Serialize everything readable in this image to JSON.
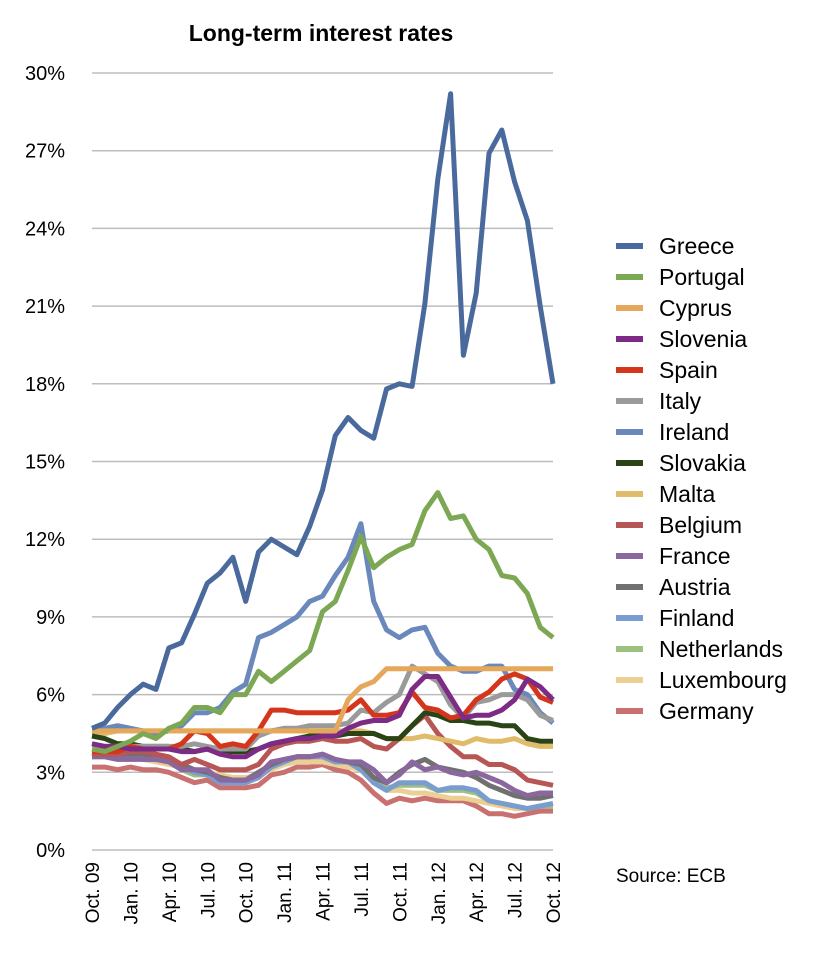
{
  "chart_data": {
    "type": "line",
    "title": "Long-term interest rates",
    "source": "Source: ECB",
    "y_ticks": [
      "0%",
      "3%",
      "6%",
      "9%",
      "12%",
      "15%",
      "18%",
      "21%",
      "24%",
      "27%",
      "30%"
    ],
    "ylim": [
      0,
      30
    ],
    "y_unit": "%",
    "grid": true,
    "legend_position": "right",
    "x_tick_labels": [
      "Oct. 09",
      "Jan. 10",
      "Apr. 10",
      "Jul. 10",
      "Oct. 10",
      "Jan. 11",
      "Apr. 11",
      "Jul. 11",
      "Oct. 11",
      "Jan. 12",
      "Apr. 12",
      "Jul. 12",
      "Oct. 12"
    ],
    "x_tick_index": [
      0,
      3,
      6,
      9,
      12,
      15,
      18,
      21,
      24,
      27,
      30,
      33,
      36
    ],
    "x": [
      "Oct. 09",
      "Nov. 09",
      "Dec. 09",
      "Jan. 10",
      "Feb. 10",
      "Mar. 10",
      "Apr. 10",
      "May 10",
      "Jun. 10",
      "Jul. 10",
      "Aug. 10",
      "Sep. 10",
      "Oct. 10",
      "Nov. 10",
      "Dec. 10",
      "Jan. 11",
      "Feb. 11",
      "Mar. 11",
      "Apr. 11",
      "May 11",
      "Jun. 11",
      "Jul. 11",
      "Aug. 11",
      "Sep. 11",
      "Oct. 11",
      "Nov. 11",
      "Dec. 11",
      "Jan. 12",
      "Feb. 12",
      "Mar. 12",
      "Apr. 12",
      "May 12",
      "Jun. 12",
      "Jul. 12",
      "Aug. 12",
      "Sep. 12",
      "Oct. 12"
    ],
    "series": [
      {
        "name": "Germany",
        "color": "#c97070",
        "values": [
          3.2,
          3.2,
          3.1,
          3.2,
          3.1,
          3.1,
          3.0,
          2.8,
          2.6,
          2.7,
          2.4,
          2.4,
          2.4,
          2.5,
          2.9,
          3.0,
          3.2,
          3.2,
          3.3,
          3.1,
          3.0,
          2.7,
          2.2,
          1.8,
          2.0,
          1.9,
          2.0,
          1.9,
          1.9,
          1.9,
          1.7,
          1.4,
          1.4,
          1.3,
          1.4,
          1.5,
          1.5
        ]
      },
      {
        "name": "Luxembourg",
        "color": "#ecd093",
        "values": [
          3.6,
          3.6,
          3.5,
          3.5,
          3.5,
          3.4,
          3.3,
          3.2,
          3.1,
          3.0,
          2.9,
          2.8,
          2.8,
          2.9,
          3.1,
          3.3,
          3.4,
          3.4,
          3.4,
          3.3,
          3.2,
          3.1,
          2.6,
          2.3,
          2.3,
          2.2,
          2.2,
          2.1,
          2.0,
          2.0,
          1.9,
          1.8,
          1.7,
          1.6,
          1.6,
          1.7,
          1.7
        ]
      },
      {
        "name": "Netherlands",
        "color": "#9cc080",
        "values": [
          3.6,
          3.6,
          3.6,
          3.6,
          3.5,
          3.5,
          3.4,
          3.1,
          2.9,
          2.9,
          2.6,
          2.6,
          2.6,
          2.8,
          3.2,
          3.4,
          3.6,
          3.6,
          3.6,
          3.4,
          3.4,
          3.1,
          2.7,
          2.4,
          2.5,
          2.5,
          2.5,
          2.3,
          2.3,
          2.3,
          2.2,
          1.9,
          1.8,
          1.7,
          1.6,
          1.7,
          1.7
        ]
      },
      {
        "name": "Finland",
        "color": "#7b9ccf",
        "values": [
          3.6,
          3.7,
          3.6,
          3.6,
          3.5,
          3.5,
          3.4,
          3.2,
          3.0,
          2.9,
          2.6,
          2.6,
          2.6,
          2.8,
          3.2,
          3.4,
          3.6,
          3.6,
          3.6,
          3.4,
          3.4,
          3.1,
          2.6,
          2.3,
          2.6,
          2.6,
          2.6,
          2.3,
          2.4,
          2.4,
          2.3,
          1.9,
          1.8,
          1.7,
          1.6,
          1.7,
          1.8
        ]
      },
      {
        "name": "Austria",
        "color": "#707070",
        "values": [
          3.8,
          3.8,
          3.7,
          3.7,
          3.7,
          3.6,
          3.5,
          3.3,
          3.1,
          3.0,
          2.8,
          2.7,
          2.7,
          3.0,
          3.3,
          3.5,
          3.6,
          3.6,
          3.7,
          3.5,
          3.4,
          3.3,
          2.8,
          2.6,
          3.0,
          3.3,
          3.5,
          3.2,
          3.1,
          3.0,
          2.8,
          2.5,
          2.3,
          2.1,
          2.0,
          2.0,
          2.1
        ]
      },
      {
        "name": "France",
        "color": "#8b679f",
        "values": [
          3.6,
          3.6,
          3.5,
          3.5,
          3.5,
          3.5,
          3.4,
          3.1,
          3.1,
          3.1,
          2.7,
          2.7,
          2.7,
          2.9,
          3.4,
          3.5,
          3.6,
          3.6,
          3.7,
          3.5,
          3.4,
          3.4,
          3.1,
          2.6,
          2.9,
          3.4,
          3.1,
          3.2,
          3.0,
          2.9,
          3.0,
          2.8,
          2.6,
          2.3,
          2.1,
          2.2,
          2.2
        ]
      },
      {
        "name": "Belgium",
        "color": "#b85555",
        "values": [
          3.7,
          3.7,
          3.7,
          3.8,
          3.8,
          3.7,
          3.6,
          3.3,
          3.5,
          3.3,
          3.1,
          3.1,
          3.1,
          3.3,
          3.9,
          4.1,
          4.2,
          4.2,
          4.3,
          4.2,
          4.2,
          4.3,
          4.0,
          3.9,
          4.3,
          4.8,
          5.2,
          4.5,
          4.0,
          3.6,
          3.6,
          3.3,
          3.3,
          3.1,
          2.7,
          2.6,
          2.5
        ]
      },
      {
        "name": "Malta",
        "color": "#dfbb6a",
        "values": [
          4.5,
          4.5,
          4.6,
          4.6,
          4.6,
          4.6,
          4.6,
          4.6,
          4.6,
          4.6,
          4.6,
          4.6,
          4.6,
          4.6,
          4.6,
          4.6,
          4.6,
          4.6,
          4.6,
          4.6,
          4.6,
          4.6,
          4.5,
          4.3,
          4.3,
          4.3,
          4.4,
          4.3,
          4.2,
          4.1,
          4.3,
          4.2,
          4.2,
          4.3,
          4.1,
          4.0,
          4.0
        ]
      },
      {
        "name": "Slovakia",
        "color": "#2b4416",
        "values": [
          4.4,
          4.3,
          4.1,
          4.1,
          4.0,
          4.0,
          4.0,
          3.9,
          3.8,
          3.9,
          3.8,
          3.8,
          3.8,
          3.9,
          4.1,
          4.2,
          4.3,
          4.4,
          4.4,
          4.4,
          4.5,
          4.5,
          4.5,
          4.3,
          4.3,
          4.8,
          5.3,
          5.2,
          5.0,
          5.0,
          4.9,
          4.9,
          4.8,
          4.8,
          4.3,
          4.2,
          4.2
        ]
      },
      {
        "name": "Ireland",
        "color": "#6b88bc",
        "values": [
          4.7,
          4.7,
          4.8,
          4.7,
          4.6,
          4.5,
          4.6,
          4.8,
          5.3,
          5.3,
          5.5,
          6.1,
          6.4,
          8.2,
          8.4,
          8.7,
          9.0,
          9.6,
          9.8,
          10.6,
          11.3,
          12.6,
          9.6,
          8.5,
          8.2,
          8.5,
          8.6,
          7.6,
          7.1,
          6.9,
          6.9,
          7.1,
          7.1,
          6.2,
          6.0,
          5.3,
          4.9
        ]
      },
      {
        "name": "Italy",
        "color": "#9a9a9a",
        "values": [
          4.1,
          4.0,
          4.0,
          4.0,
          4.0,
          4.0,
          4.0,
          4.0,
          4.1,
          4.0,
          3.9,
          3.9,
          3.9,
          4.4,
          4.6,
          4.7,
          4.7,
          4.8,
          4.8,
          4.8,
          4.9,
          5.4,
          5.3,
          5.7,
          6.0,
          7.1,
          6.8,
          6.5,
          5.6,
          5.1,
          5.7,
          5.8,
          6.0,
          6.0,
          5.8,
          5.2,
          5.0
        ]
      },
      {
        "name": "Spain",
        "color": "#d5361b",
        "values": [
          3.8,
          3.8,
          3.8,
          4.0,
          3.9,
          3.9,
          3.9,
          4.1,
          4.6,
          4.5,
          4.0,
          4.1,
          4.0,
          4.6,
          5.4,
          5.4,
          5.3,
          5.3,
          5.3,
          5.3,
          5.4,
          5.8,
          5.2,
          5.2,
          5.3,
          6.1,
          5.5,
          5.4,
          5.1,
          5.2,
          5.8,
          6.1,
          6.6,
          6.8,
          6.6,
          5.9,
          5.7
        ]
      },
      {
        "name": "Slovenia",
        "color": "#7e2b86",
        "values": [
          4.1,
          4.0,
          4.0,
          3.9,
          3.9,
          3.9,
          3.9,
          3.8,
          3.8,
          3.9,
          3.7,
          3.6,
          3.6,
          3.9,
          4.1,
          4.2,
          4.3,
          4.3,
          4.4,
          4.4,
          4.7,
          4.9,
          5.0,
          5.0,
          5.2,
          6.2,
          6.7,
          6.7,
          5.9,
          5.1,
          5.2,
          5.2,
          5.4,
          5.8,
          6.6,
          6.3,
          5.8
        ]
      },
      {
        "name": "Cyprus",
        "color": "#e5a75a",
        "values": [
          4.6,
          4.6,
          4.6,
          4.6,
          4.6,
          4.6,
          4.6,
          4.6,
          4.6,
          4.6,
          4.6,
          4.6,
          4.6,
          4.6,
          4.6,
          4.6,
          4.6,
          4.6,
          4.6,
          4.6,
          5.8,
          6.3,
          6.5,
          7.0,
          7.0,
          7.0,
          7.0,
          7.0,
          7.0,
          7.0,
          7.0,
          7.0,
          7.0,
          7.0,
          7.0,
          7.0,
          7.0
        ]
      },
      {
        "name": "Portugal",
        "color": "#7ca854",
        "values": [
          3.9,
          3.8,
          4.0,
          4.2,
          4.5,
          4.3,
          4.7,
          4.9,
          5.5,
          5.5,
          5.3,
          6.0,
          6.0,
          6.9,
          6.5,
          6.9,
          7.3,
          7.7,
          9.2,
          9.6,
          10.8,
          12.1,
          10.9,
          11.3,
          11.6,
          11.8,
          13.1,
          13.8,
          12.8,
          12.9,
          12.0,
          11.6,
          10.6,
          10.5,
          9.9,
          8.6,
          8.2
        ]
      },
      {
        "name": "Greece",
        "color": "#4a6a9e",
        "values": [
          4.7,
          4.9,
          5.5,
          6.0,
          6.4,
          6.2,
          7.8,
          8.0,
          9.1,
          10.3,
          10.7,
          11.3,
          9.6,
          11.5,
          12.0,
          11.7,
          11.4,
          12.5,
          13.9,
          16.0,
          16.7,
          16.2,
          15.9,
          17.8,
          18.0,
          17.9,
          21.1,
          25.9,
          29.2,
          19.1,
          21.5,
          26.9,
          27.8,
          25.8,
          24.3,
          21.0,
          18.0
        ]
      }
    ],
    "legend_order": [
      "Greece",
      "Portugal",
      "Cyprus",
      "Slovenia",
      "Spain",
      "Italy",
      "Ireland",
      "Slovakia",
      "Malta",
      "Belgium",
      "France",
      "Austria",
      "Finland",
      "Netherlands",
      "Luxembourg",
      "Germany"
    ]
  }
}
